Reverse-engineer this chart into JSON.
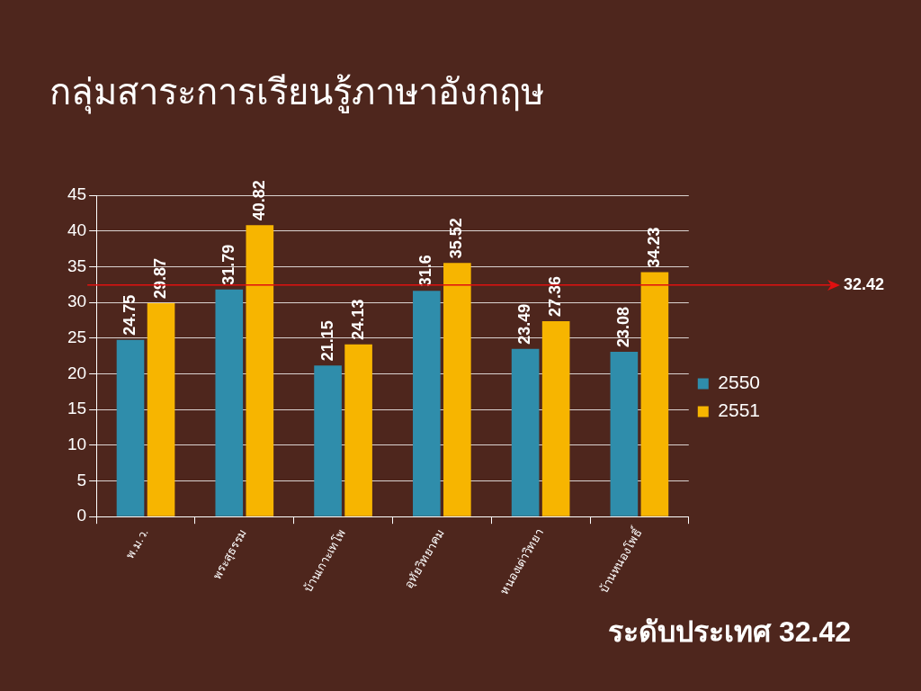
{
  "chart_data": {
    "type": "bar",
    "title": "กลุ่มสาระการเรียนรู้ภาษาอังกฤษ",
    "categories": [
      "พ.ม.ว.",
      "พระสุธรรม",
      "บ้านเกาะเทโพ",
      "อุทัยวิทยาคม",
      "หนองเต่าวิทยา",
      "บ้านหนองโพธิ์"
    ],
    "series": [
      {
        "name": "2550",
        "color": "#2f8dab",
        "values": [
          24.75,
          31.79,
          21.15,
          31.6,
          23.49,
          23.08
        ]
      },
      {
        "name": "2551",
        "color": "#f7b500",
        "values": [
          29.87,
          40.82,
          24.13,
          35.52,
          27.36,
          34.23
        ]
      }
    ],
    "ylim": [
      0,
      45
    ],
    "yticks": [
      0,
      5,
      10,
      15,
      20,
      25,
      30,
      35,
      40,
      45
    ],
    "grid": "y",
    "legend": "right",
    "data_labels": true,
    "ref_lines": [
      {
        "axis": "y",
        "value": 32.42,
        "label": "32.42",
        "color": "#e01010"
      }
    ],
    "annotations": [
      "ระดับประเทศ 32.42"
    ]
  }
}
